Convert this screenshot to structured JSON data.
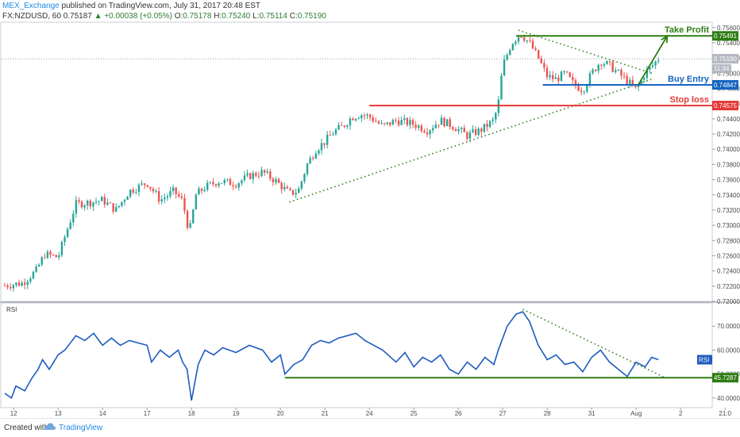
{
  "header": {
    "publisher": "MEX_Exchange",
    "published_text": "published on TradingView.com, July 31, 2017 20:48 EST",
    "symbol": "FX:NZDUSD, 60",
    "last": "0.75187",
    "change": "+0.00038 (+0.05%)",
    "open_label": "O:",
    "open": "0.75178",
    "high_label": "H:",
    "high": "0.75240",
    "low_label": "L:",
    "low": "0.75114",
    "close_label": "C:",
    "close": "0.75190"
  },
  "footer": {
    "created_with": "Created with",
    "brand": "TradingView"
  },
  "chart_data": [
    {
      "type": "candlestick",
      "title": "FX:NZDUSD, 60",
      "ylim": [
        0.72,
        0.7565
      ],
      "x_ticks": [
        {
          "label": "12",
          "t": 0.2
        },
        {
          "label": "13",
          "t": 1.2
        },
        {
          "label": "14",
          "t": 2.2
        },
        {
          "label": "17",
          "t": 3.2
        },
        {
          "label": "18",
          "t": 4.2
        },
        {
          "label": "19",
          "t": 5.2
        },
        {
          "label": "20",
          "t": 6.2
        },
        {
          "label": "21",
          "t": 7.2
        },
        {
          "label": "24",
          "t": 8.2
        },
        {
          "label": "25",
          "t": 9.2
        },
        {
          "label": "26",
          "t": 10.2
        },
        {
          "label": "27",
          "t": 11.2
        },
        {
          "label": "28",
          "t": 12.2
        },
        {
          "label": "31",
          "t": 13.2
        },
        {
          "label": "Aug",
          "t": 14.2
        },
        {
          "label": "2",
          "t": 15.2
        },
        {
          "label": "21:0",
          "t": 16.2
        }
      ],
      "y_ticks": [
        "0.75600",
        "0.75400",
        "0.75200",
        "0.75000",
        "0.74800",
        "0.74600",
        "0.74400",
        "0.74200",
        "0.74000",
        "0.73800",
        "0.73600",
        "0.73400",
        "0.73200",
        "0.73000",
        "0.72800",
        "0.72600",
        "0.72400",
        "0.72200",
        "0.72000"
      ],
      "price_path": [
        [
          0.0,
          0.7221
        ],
        [
          0.4,
          0.7224
        ],
        [
          0.7,
          0.724
        ],
        [
          0.9,
          0.7262
        ],
        [
          1.2,
          0.7258
        ],
        [
          1.35,
          0.7285
        ],
        [
          1.6,
          0.7328
        ],
        [
          1.9,
          0.733
        ],
        [
          2.2,
          0.7333
        ],
        [
          2.5,
          0.732
        ],
        [
          2.8,
          0.7345
        ],
        [
          3.2,
          0.7356
        ],
        [
          3.5,
          0.7333
        ],
        [
          3.8,
          0.7345
        ],
        [
          4.0,
          0.7332
        ],
        [
          4.15,
          0.729
        ],
        [
          4.3,
          0.734
        ],
        [
          4.5,
          0.735
        ],
        [
          4.8,
          0.7358
        ],
        [
          5.2,
          0.7355
        ],
        [
          5.5,
          0.7365
        ],
        [
          5.8,
          0.737
        ],
        [
          6.1,
          0.7358
        ],
        [
          6.4,
          0.7342
        ],
        [
          6.6,
          0.7345
        ],
        [
          6.8,
          0.738
        ],
        [
          7.0,
          0.74
        ],
        [
          7.2,
          0.741
        ],
        [
          7.4,
          0.7423
        ],
        [
          7.6,
          0.743
        ],
        [
          7.8,
          0.7442
        ],
        [
          8.0,
          0.7446
        ],
        [
          8.2,
          0.7443
        ],
        [
          8.5,
          0.743
        ],
        [
          8.8,
          0.7438
        ],
        [
          9.2,
          0.7433
        ],
        [
          9.5,
          0.7425
        ],
        [
          9.8,
          0.7438
        ],
        [
          10.1,
          0.743
        ],
        [
          10.4,
          0.7418
        ],
        [
          10.7,
          0.7425
        ],
        [
          11.0,
          0.7438
        ],
        [
          11.1,
          0.746
        ],
        [
          11.2,
          0.751
        ],
        [
          11.4,
          0.754
        ],
        [
          11.6,
          0.7552
        ],
        [
          11.8,
          0.754
        ],
        [
          12.0,
          0.752
        ],
        [
          12.2,
          0.7496
        ],
        [
          12.4,
          0.7492
        ],
        [
          12.6,
          0.75
        ],
        [
          12.8,
          0.7485
        ],
        [
          13.0,
          0.7478
        ],
        [
          13.2,
          0.75
        ],
        [
          13.4,
          0.7516
        ],
        [
          13.6,
          0.751
        ],
        [
          13.8,
          0.75
        ],
        [
          14.0,
          0.749
        ],
        [
          14.2,
          0.7478
        ],
        [
          14.4,
          0.75
        ],
        [
          14.55,
          0.7509
        ],
        [
          14.7,
          0.7519
        ]
      ],
      "candle_count": 230,
      "last_price_label": "0.75190",
      "time_label": "11:34",
      "levels": [
        {
          "name": "Take Profit",
          "price": 0.75491,
          "label": "0.75491",
          "color": "#2e7d14",
          "from_t": 11.5
        },
        {
          "name": "Buy Entry",
          "price": 0.74847,
          "label": "0.74847",
          "color": "#1565c0",
          "from_t": 12.1
        },
        {
          "name": "Stop loss",
          "price": 0.74575,
          "label": "0.74575",
          "color": "#e53935",
          "from_t": 8.2
        }
      ],
      "trendlines": [
        {
          "t1": 6.4,
          "p1": 0.73305,
          "t2": 14.6,
          "p2": 0.7493
        },
        {
          "t1": 11.55,
          "p1": 0.75565,
          "t2": 14.55,
          "p2": 0.75
        }
      ],
      "arrow": {
        "t1": 14.25,
        "p1": 0.7485,
        "t2": 14.9,
        "p2": 0.75491
      },
      "colors": {
        "up": "#26a69a",
        "down": "#ef5350",
        "trend": "#2e7d14"
      }
    },
    {
      "type": "line",
      "title": "RSI",
      "ylim": [
        36,
        79
      ],
      "y_ticks": [
        "70.0000",
        "60.0000",
        "50.0000",
        "40.0000"
      ],
      "last_label": "RSI",
      "series": [
        {
          "points": [
            [
              0.0,
              42
            ],
            [
              0.15,
              40
            ],
            [
              0.25,
              45
            ],
            [
              0.45,
              43
            ],
            [
              0.6,
              48
            ],
            [
              0.75,
              52
            ],
            [
              0.85,
              56
            ],
            [
              1.0,
              52
            ],
            [
              1.2,
              58
            ],
            [
              1.35,
              60
            ],
            [
              1.6,
              66
            ],
            [
              1.8,
              64
            ],
            [
              2.0,
              67
            ],
            [
              2.2,
              62
            ],
            [
              2.4,
              65
            ],
            [
              2.6,
              62
            ],
            [
              2.8,
              64
            ],
            [
              3.0,
              63
            ],
            [
              3.2,
              62
            ],
            [
              3.3,
              55
            ],
            [
              3.5,
              60
            ],
            [
              3.7,
              57
            ],
            [
              3.9,
              60
            ],
            [
              4.0,
              55
            ],
            [
              4.1,
              52
            ],
            [
              4.2,
              39
            ],
            [
              4.35,
              54
            ],
            [
              4.5,
              60
            ],
            [
              4.7,
              58
            ],
            [
              4.9,
              61
            ],
            [
              5.2,
              59
            ],
            [
              5.5,
              62
            ],
            [
              5.8,
              60
            ],
            [
              6.0,
              55
            ],
            [
              6.2,
              58
            ],
            [
              6.3,
              50
            ],
            [
              6.5,
              54
            ],
            [
              6.7,
              56
            ],
            [
              6.9,
              62
            ],
            [
              7.1,
              64
            ],
            [
              7.3,
              63
            ],
            [
              7.5,
              65
            ],
            [
              7.7,
              66
            ],
            [
              7.9,
              67
            ],
            [
              8.1,
              64
            ],
            [
              8.3,
              62
            ],
            [
              8.5,
              60
            ],
            [
              8.8,
              55
            ],
            [
              9.0,
              59
            ],
            [
              9.2,
              53
            ],
            [
              9.4,
              57
            ],
            [
              9.6,
              55
            ],
            [
              9.8,
              58
            ],
            [
              10.0,
              52
            ],
            [
              10.2,
              50
            ],
            [
              10.4,
              55
            ],
            [
              10.6,
              52
            ],
            [
              10.8,
              57
            ],
            [
              11.0,
              54
            ],
            [
              11.1,
              60
            ],
            [
              11.3,
              70
            ],
            [
              11.5,
              75
            ],
            [
              11.65,
              76
            ],
            [
              11.8,
              72
            ],
            [
              12.0,
              62
            ],
            [
              12.2,
              56
            ],
            [
              12.4,
              58
            ],
            [
              12.6,
              54
            ],
            [
              12.8,
              55
            ],
            [
              13.0,
              51
            ],
            [
              13.2,
              57
            ],
            [
              13.4,
              60
            ],
            [
              13.6,
              55
            ],
            [
              13.8,
              52
            ],
            [
              14.0,
              49
            ],
            [
              14.2,
              55
            ],
            [
              14.4,
              53
            ],
            [
              14.55,
              57
            ],
            [
              14.7,
              56
            ]
          ]
        }
      ],
      "trendlines": [
        {
          "t1": 11.65,
          "p1": 77,
          "t2": 14.85,
          "p2": 48.5
        },
        {
          "t1": 6.3,
          "p1": 48.5,
          "t2": 16.5,
          "p2": 48.5
        }
      ],
      "level_label": "45.7287",
      "colors": {
        "line": "#1e5bbf",
        "trend": "#2e7d14"
      }
    }
  ]
}
